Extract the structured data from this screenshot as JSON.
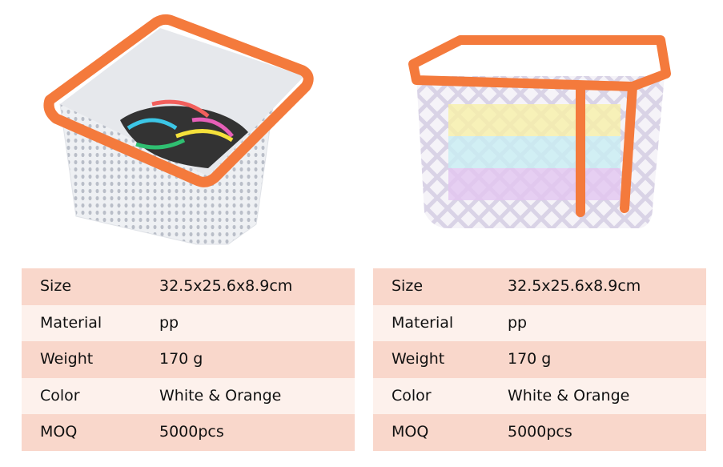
{
  "tables": [
    {
      "rows": [
        [
          "Size",
          "32.5x25.6x8.9cm"
        ],
        [
          "Material",
          "pp"
        ],
        [
          "Weight",
          "170 g"
        ],
        [
          "Color",
          "White & Orange"
        ],
        [
          "MOQ",
          "5000pcs"
        ]
      ]
    },
    {
      "rows": [
        [
          "Size",
          "32.5x25.6x8.9cm"
        ],
        [
          "Material",
          "pp"
        ],
        [
          "Weight",
          "170 g"
        ],
        [
          "Color",
          "White & Orange"
        ],
        [
          "MOQ",
          "5000pcs"
        ]
      ]
    }
  ]
}
